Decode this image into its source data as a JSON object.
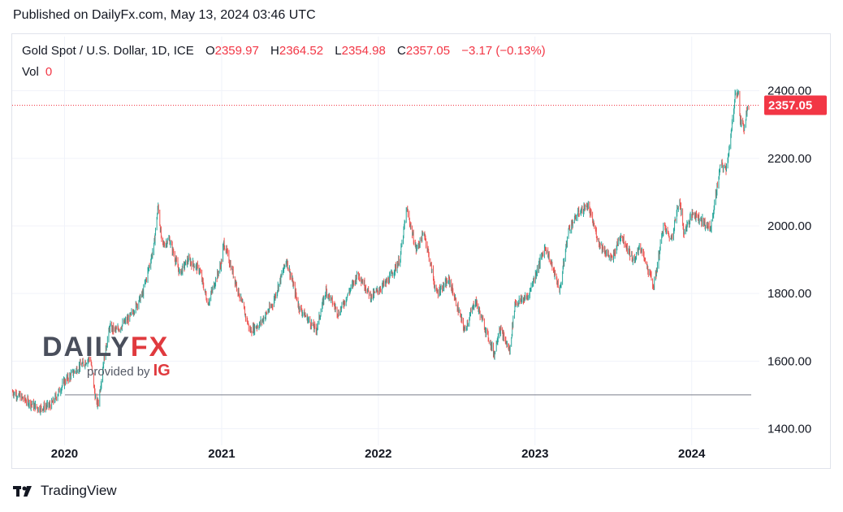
{
  "header": {
    "published": "Published on DailyFx.com, May 13, 2024 03:46 UTC"
  },
  "legend": {
    "symbol": "Gold Spot / U.S. Dollar, 1D, ICE",
    "o_label": "O",
    "o_value": "2359.97",
    "h_label": "H",
    "h_value": "2364.52",
    "l_label": "L",
    "l_value": "2354.98",
    "c_label": "C",
    "c_value": "2357.05",
    "change": "−3.17 (−0.13%)",
    "vol_label": "Vol",
    "vol_value": "0"
  },
  "watermark": {
    "daily": "DAILY",
    "fx": "FX",
    "provided": "provided by",
    "ig": "IG"
  },
  "footer": {
    "brand": "TradingView"
  },
  "colors": {
    "up": "#26a69a",
    "down": "#ef5350",
    "price_label": "#f23645",
    "grid": "#f0f3fa",
    "axis_text": "#131722"
  },
  "chart_data": {
    "type": "candlestick",
    "title": "Gold Spot / U.S. Dollar, 1D, ICE",
    "interval": "1D",
    "ylim": [
      1370,
      2440
    ],
    "y_ticks": [
      "1400.00",
      "1600.00",
      "1800.00",
      "2000.00",
      "2200.00",
      "2400.00"
    ],
    "x_ticks": [
      "2020",
      "2021",
      "2022",
      "2023",
      "2024"
    ],
    "x_range": [
      "2019-09-01",
      "2024-05-13"
    ],
    "last_price": "2357.05",
    "last_price_value": 2357.05,
    "reference_line_value": 1500,
    "grid": true,
    "series": [
      {
        "points": [
          [
            "2019-09-01",
            1510
          ],
          [
            "2019-10-01",
            1485
          ],
          [
            "2019-11-01",
            1460
          ],
          [
            "2019-12-01",
            1470
          ],
          [
            "2020-01-01",
            1540
          ],
          [
            "2020-02-01",
            1580
          ],
          [
            "2020-03-01",
            1610
          ],
          [
            "2020-03-15",
            1470
          ],
          [
            "2020-03-20",
            1480
          ],
          [
            "2020-04-01",
            1600
          ],
          [
            "2020-04-15",
            1700
          ],
          [
            "2020-05-01",
            1690
          ],
          [
            "2020-06-01",
            1730
          ],
          [
            "2020-07-01",
            1800
          ],
          [
            "2020-07-27",
            1940
          ],
          [
            "2020-08-06",
            2060
          ],
          [
            "2020-08-15",
            1940
          ],
          [
            "2020-09-01",
            1960
          ],
          [
            "2020-09-25",
            1860
          ],
          [
            "2020-10-15",
            1900
          ],
          [
            "2020-11-10",
            1870
          ],
          [
            "2020-11-30",
            1770
          ],
          [
            "2020-12-31",
            1890
          ],
          [
            "2021-01-06",
            1950
          ],
          [
            "2021-02-01",
            1840
          ],
          [
            "2021-03-08",
            1690
          ],
          [
            "2021-03-31",
            1710
          ],
          [
            "2021-04-30",
            1770
          ],
          [
            "2021-06-01",
            1900
          ],
          [
            "2021-06-30",
            1760
          ],
          [
            "2021-08-09",
            1690
          ],
          [
            "2021-09-01",
            1810
          ],
          [
            "2021-09-30",
            1740
          ],
          [
            "2021-11-15",
            1860
          ],
          [
            "2021-12-15",
            1790
          ],
          [
            "2022-01-25",
            1840
          ],
          [
            "2022-02-20",
            1900
          ],
          [
            "2022-03-08",
            2050
          ],
          [
            "2022-03-30",
            1930
          ],
          [
            "2022-04-18",
            1980
          ],
          [
            "2022-05-16",
            1800
          ],
          [
            "2022-06-15",
            1840
          ],
          [
            "2022-07-21",
            1690
          ],
          [
            "2022-08-15",
            1780
          ],
          [
            "2022-09-28",
            1620
          ],
          [
            "2022-10-10",
            1700
          ],
          [
            "2022-11-03",
            1630
          ],
          [
            "2022-11-15",
            1770
          ],
          [
            "2022-12-15",
            1790
          ],
          [
            "2023-01-25",
            1940
          ],
          [
            "2023-02-28",
            1810
          ],
          [
            "2023-03-20",
            1990
          ],
          [
            "2023-04-13",
            2040
          ],
          [
            "2023-05-04",
            2060
          ],
          [
            "2023-05-30",
            1950
          ],
          [
            "2023-06-29",
            1900
          ],
          [
            "2023-07-20",
            1975
          ],
          [
            "2023-08-21",
            1890
          ],
          [
            "2023-09-01",
            1945
          ],
          [
            "2023-10-05",
            1820
          ],
          [
            "2023-10-27",
            2000
          ],
          [
            "2023-11-14",
            1960
          ],
          [
            "2023-12-04",
            2080
          ],
          [
            "2023-12-13",
            1980
          ],
          [
            "2024-01-05",
            2040
          ],
          [
            "2024-02-14",
            1990
          ],
          [
            "2024-03-08",
            2180
          ],
          [
            "2024-03-21",
            2170
          ],
          [
            "2024-04-01",
            2260
          ],
          [
            "2024-04-12",
            2400
          ],
          [
            "2024-04-19",
            2390
          ],
          [
            "2024-04-23",
            2310
          ],
          [
            "2024-05-02",
            2290
          ],
          [
            "2024-05-10",
            2360
          ],
          [
            "2024-05-13",
            2357
          ]
        ]
      }
    ]
  }
}
